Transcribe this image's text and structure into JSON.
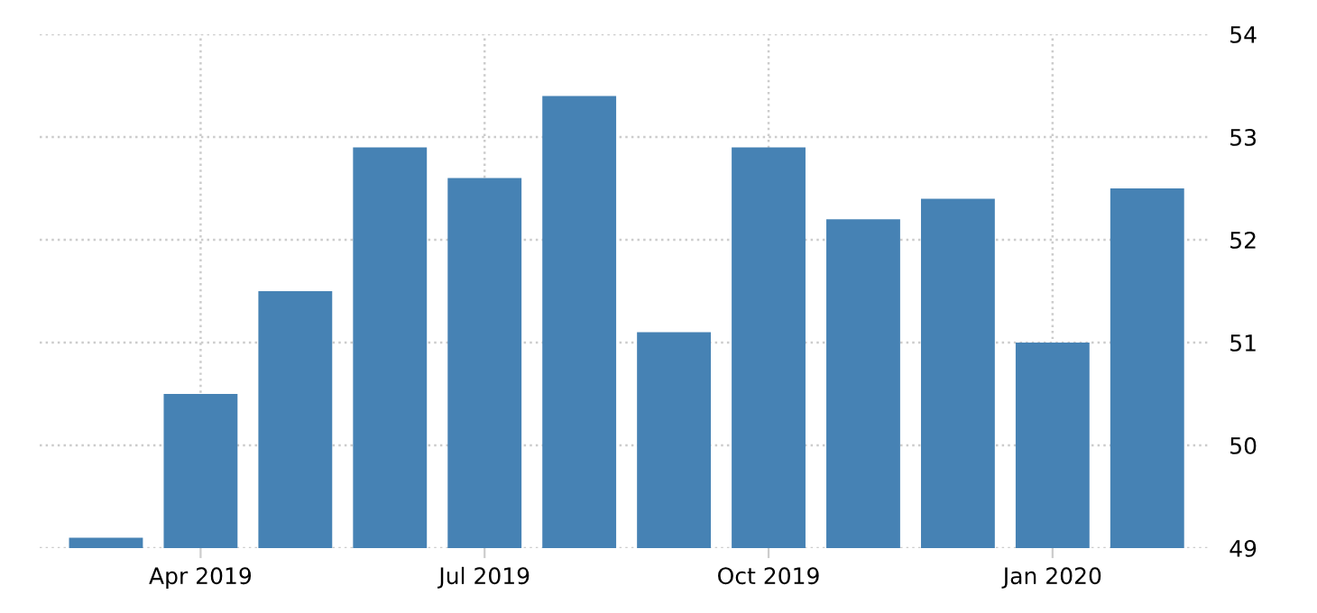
{
  "chart_data": {
    "type": "bar",
    "categories": [
      null,
      "Apr 2019",
      null,
      null,
      "Jul 2019",
      null,
      null,
      "Oct 2019",
      null,
      null,
      "Jan 2020",
      null
    ],
    "values": [
      49.1,
      50.5,
      51.5,
      52.9,
      52.6,
      53.4,
      51.1,
      52.9,
      52.2,
      52.4,
      51.0,
      52.5
    ],
    "color": "#4682b4",
    "ylim": [
      49,
      54
    ],
    "yticks": [
      49,
      50,
      51,
      52,
      53,
      54
    ],
    "grid": true
  }
}
